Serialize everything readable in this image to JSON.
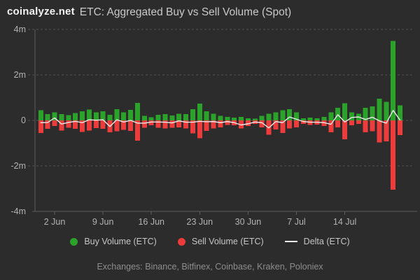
{
  "header": {
    "logo": "coinalyze.net",
    "title": "ETC: Aggregated Buy vs Sell Volume (Spot)"
  },
  "legend": {
    "items": [
      {
        "label": "Buy Volume (ETC)",
        "marker": "circle",
        "color": "#2ba32b"
      },
      {
        "label": "Sell Volume (ETC)",
        "marker": "circle",
        "color": "#ee3b3b"
      },
      {
        "label": "Delta (ETC)",
        "marker": "line",
        "color": "#ebebeb"
      }
    ]
  },
  "footer": {
    "exchanges": "Exchanges: Binance, Bitfinex, Coinbase, Kraken, Poloniex"
  },
  "colors": {
    "background": "#2c2c2c",
    "buy": "#2ba32b",
    "sell": "#ee3b3b",
    "delta": "#ebebeb",
    "grid": "#525252",
    "axis": "#5d5d5d",
    "tick_text": "#b3b3b3"
  },
  "chart_data": {
    "type": "bar",
    "title": "ETC: Aggregated Buy vs Sell Volume (Spot)",
    "xlabel": "",
    "ylabel": "",
    "unit": "millions of ETC",
    "ylim": [
      -4,
      4
    ],
    "grid": "dashed-horizontal",
    "legend_position": "bottom",
    "y_ticks": [
      {
        "value": 4,
        "label": "4m"
      },
      {
        "value": 2,
        "label": "2m"
      },
      {
        "value": 0,
        "label": "0"
      },
      {
        "value": -2,
        "label": "-2m"
      },
      {
        "value": -4,
        "label": "-4m"
      }
    ],
    "x_ticks": [
      "2 Jun",
      "9 Jun",
      "16 Jun",
      "23 Jun",
      "30 Jun",
      "7 Jul",
      "14 Jul"
    ],
    "categories": [
      "31 May",
      "1 Jun",
      "2 Jun",
      "3 Jun",
      "4 Jun",
      "5 Jun",
      "6 Jun",
      "7 Jun",
      "8 Jun",
      "9 Jun",
      "10 Jun",
      "11 Jun",
      "12 Jun",
      "13 Jun",
      "14 Jun",
      "15 Jun",
      "16 Jun",
      "17 Jun",
      "18 Jun",
      "19 Jun",
      "20 Jun",
      "21 Jun",
      "22 Jun",
      "23 Jun",
      "24 Jun",
      "25 Jun",
      "26 Jun",
      "27 Jun",
      "28 Jun",
      "29 Jun",
      "30 Jun",
      "1 Jul",
      "2 Jul",
      "3 Jul",
      "4 Jul",
      "5 Jul",
      "6 Jul",
      "7 Jul",
      "8 Jul",
      "9 Jul",
      "10 Jul",
      "11 Jul",
      "12 Jul",
      "13 Jul",
      "14 Jul",
      "15 Jul",
      "16 Jul",
      "17 Jul",
      "18 Jul",
      "19 Jul",
      "20 Jul",
      "21 Jul",
      "22 Jul"
    ],
    "series": [
      {
        "name": "Buy Volume (ETC)",
        "color": "#2ba32b",
        "values": [
          0.45,
          0.28,
          0.35,
          0.28,
          0.23,
          0.33,
          0.4,
          0.47,
          0.35,
          0.4,
          0.25,
          0.5,
          0.35,
          0.46,
          0.77,
          0.2,
          0.14,
          0.25,
          0.28,
          0.22,
          0.29,
          0.27,
          0.49,
          0.74,
          0.4,
          0.3,
          0.2,
          0.15,
          0.12,
          0.15,
          0.1,
          0.08,
          0.2,
          0.3,
          0.35,
          0.45,
          0.5,
          0.35,
          0.1,
          0.12,
          0.1,
          0.15,
          0.35,
          0.56,
          0.76,
          0.35,
          0.3,
          0.56,
          0.61,
          0.95,
          0.81,
          3.49,
          0.66
        ]
      },
      {
        "name": "Sell Volume (ETC)",
        "color": "#ee3b3b",
        "values": [
          -0.55,
          -0.37,
          -0.24,
          -0.44,
          -0.32,
          -0.37,
          -0.5,
          -0.44,
          -0.34,
          -0.37,
          -0.52,
          -0.47,
          -0.42,
          -0.46,
          -0.89,
          -0.32,
          -0.21,
          -0.32,
          -0.36,
          -0.33,
          -0.31,
          -0.35,
          -0.57,
          -0.78,
          -0.46,
          -0.35,
          -0.3,
          -0.2,
          -0.22,
          -0.35,
          -0.25,
          -0.15,
          -0.3,
          -0.63,
          -0.4,
          -0.55,
          -0.35,
          -0.3,
          -0.15,
          -0.2,
          -0.18,
          -0.25,
          -0.52,
          -0.31,
          -0.83,
          -0.22,
          -0.15,
          -0.52,
          -0.47,
          -0.97,
          -0.93,
          -3.05,
          -0.65
        ]
      },
      {
        "name": "Delta (ETC)",
        "color": "#ebebeb",
        "type": "line",
        "values": [
          -0.1,
          -0.09,
          0.11,
          -0.16,
          -0.09,
          -0.04,
          -0.1,
          0.03,
          0.01,
          0.03,
          -0.27,
          0.03,
          -0.07,
          0.0,
          -0.12,
          -0.12,
          -0.07,
          -0.07,
          -0.08,
          -0.11,
          -0.02,
          -0.08,
          -0.08,
          -0.04,
          -0.06,
          -0.05,
          -0.1,
          -0.05,
          -0.1,
          -0.2,
          -0.15,
          -0.07,
          -0.1,
          -0.33,
          -0.05,
          -0.1,
          0.15,
          0.05,
          -0.05,
          -0.08,
          -0.08,
          -0.1,
          -0.17,
          0.25,
          -0.07,
          0.13,
          0.15,
          0.04,
          0.14,
          -0.02,
          -0.12,
          0.44,
          0.01
        ]
      }
    ]
  }
}
